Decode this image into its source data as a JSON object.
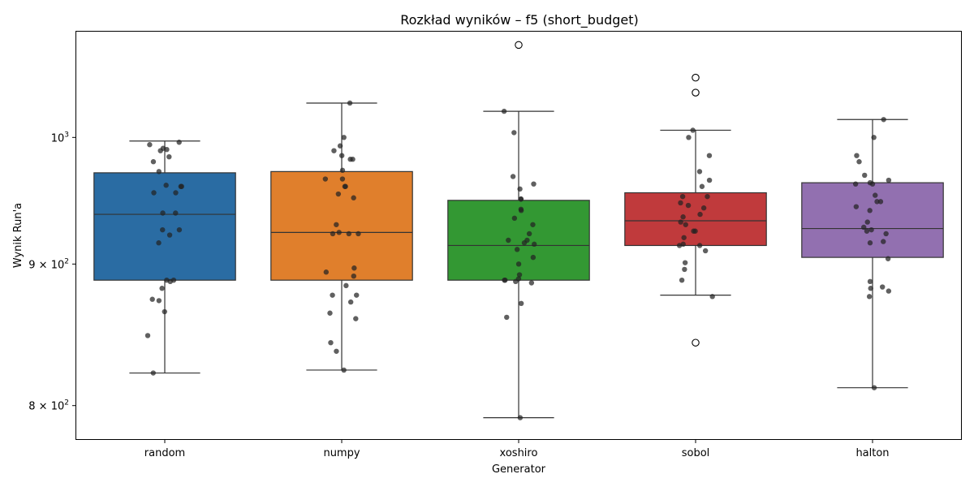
{
  "chart_data": {
    "type": "box",
    "title": "Rozkład wyników – f5 (short_budget)",
    "xlabel": "Generator",
    "ylabel": "Wynik Run'a",
    "yscale": "log",
    "ylim": [
      778,
      1092
    ],
    "y_ticks": [
      {
        "value": 800,
        "mantissa": "8",
        "base": "10",
        "exp": "2"
      },
      {
        "value": 900,
        "mantissa": "9",
        "base": "10",
        "exp": "2"
      },
      {
        "value": 1000,
        "mantissa": "",
        "base": "10",
        "exp": "3"
      }
    ],
    "categories": [
      "random",
      "numpy",
      "xoshiro",
      "sobol",
      "halton"
    ],
    "boxes": [
      {
        "category": "random",
        "color": "#2a6ca3",
        "whislo": 822,
        "q1": 888,
        "med": 938,
        "q3": 971,
        "whishi": 997,
        "fliers": []
      },
      {
        "category": "numpy",
        "color": "#e07f2c",
        "whislo": 824,
        "q1": 888,
        "med": 924,
        "q3": 972,
        "whishi": 1029,
        "fliers": []
      },
      {
        "category": "xoshiro",
        "color": "#339833",
        "whislo": 792,
        "q1": 888,
        "med": 914,
        "q3": 949,
        "whishi": 1022,
        "fliers": [
          1080
        ]
      },
      {
        "category": "sobol",
        "color": "#c03a3c",
        "whislo": 877,
        "q1": 914,
        "med": 933,
        "q3": 955,
        "whishi": 1006,
        "fliers": [
          1051,
          1038,
          843
        ]
      },
      {
        "category": "halton",
        "color": "#9270b0",
        "whislo": 812,
        "q1": 905,
        "med": 927,
        "q3": 963,
        "whishi": 1015,
        "fliers": []
      }
    ],
    "points": [
      [
        996,
        994,
        990,
        989,
        991,
        984,
        980,
        972,
        961,
        960,
        955,
        955,
        960,
        939,
        939,
        926,
        926,
        922,
        916,
        888,
        888,
        887,
        882,
        874,
        873,
        865,
        848,
        822
      ],
      [
        1029,
        1000,
        993,
        989,
        982,
        982,
        985,
        973,
        966,
        966,
        960,
        960,
        954,
        951,
        930,
        924,
        923,
        923,
        923,
        897,
        891,
        894,
        884,
        877,
        877,
        872,
        864,
        860,
        843,
        837,
        824
      ],
      [
        1022,
        1004,
        968,
        962,
        958,
        950,
        950,
        941,
        942,
        935,
        930,
        923,
        918,
        918,
        916,
        915,
        911,
        905,
        900,
        892,
        889,
        888,
        888,
        887,
        886,
        871,
        861,
        792
      ],
      [
        1006,
        1000,
        985,
        972,
        965,
        960,
        952,
        952,
        947,
        945,
        943,
        938,
        936,
        932,
        930,
        925,
        925,
        920,
        914,
        915,
        914,
        910,
        901,
        896,
        888,
        876
      ],
      [
        1015,
        1000,
        985,
        980,
        969,
        965,
        963,
        962,
        962,
        953,
        948,
        948,
        944,
        941,
        932,
        928,
        926,
        925,
        923,
        917,
        916,
        904,
        887,
        883,
        882,
        880,
        876,
        812
      ]
    ],
    "grid": false
  }
}
